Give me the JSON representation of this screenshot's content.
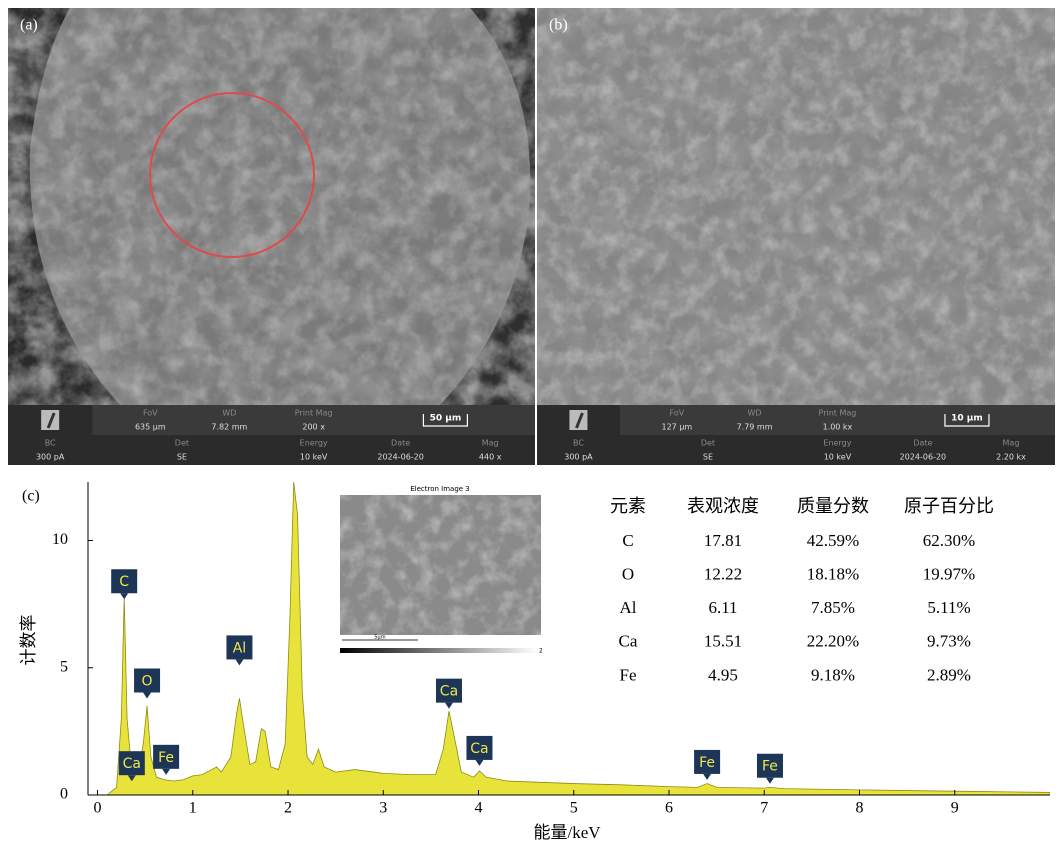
{
  "panels": [
    {
      "label": "(a)",
      "info_top": [
        [
          "FoV",
          "635 μm"
        ],
        [
          "WD",
          "7.82 mm"
        ],
        [
          "Print Mag",
          "200 x"
        ]
      ],
      "scale_bar": "50 μm",
      "info_bottom": [
        [
          "BC",
          "300 pA"
        ],
        [
          "Det",
          "SE"
        ],
        [
          "Energy",
          "10 keV"
        ],
        [
          "Date",
          "2024-06-20"
        ],
        [
          "Mag",
          "440 x"
        ]
      ]
    },
    {
      "label": "(b)",
      "info_top": [
        [
          "FoV",
          "127 μm"
        ],
        [
          "WD",
          "7.79 mm"
        ],
        [
          "Print Mag",
          "1.00 kx"
        ]
      ],
      "scale_bar": "10 μm",
      "info_bottom": [
        [
          "BC",
          "300 pA"
        ],
        [
          "Det",
          "SE"
        ],
        [
          "Energy",
          "10 keV"
        ],
        [
          "Date",
          "2024-06-20"
        ],
        [
          "Mag",
          "2.20 kx"
        ]
      ]
    }
  ],
  "chart_data": {
    "type": "area",
    "panel_label": "(c)",
    "x_label": "能量/keV",
    "y_label": "计数率",
    "color": "#e8e33a",
    "x": [
      0.1,
      0.2,
      0.25,
      0.28,
      0.31,
      0.36,
      0.42,
      0.48,
      0.52,
      0.56,
      0.62,
      0.7,
      0.8,
      0.9,
      1.0,
      1.1,
      1.2,
      1.25,
      1.3,
      1.4,
      1.46,
      1.49,
      1.53,
      1.6,
      1.66,
      1.72,
      1.76,
      1.82,
      1.9,
      1.97,
      2.02,
      2.06,
      2.1,
      2.15,
      2.2,
      2.26,
      2.32,
      2.38,
      2.5,
      2.7,
      3.0,
      3.3,
      3.55,
      3.63,
      3.69,
      3.75,
      3.82,
      3.95,
      4.01,
      4.08,
      4.3,
      5.0,
      5.5,
      6.0,
      6.3,
      6.4,
      6.5,
      7.0,
      7.06,
      7.2,
      8.0,
      9.0,
      10
    ],
    "values": [
      0,
      0.3,
      3,
      7.8,
      3,
      0.9,
      0.8,
      2.0,
      3.5,
      1.5,
      0.7,
      0.6,
      0.55,
      0.6,
      0.75,
      0.8,
      1.0,
      1.1,
      0.9,
      1.5,
      3.2,
      3.8,
      2.8,
      1.2,
      1.3,
      2.6,
      2.5,
      1.1,
      1.0,
      2.0,
      7,
      12.3,
      11,
      4,
      1.5,
      1.2,
      1.8,
      1.1,
      0.9,
      1.0,
      0.85,
      0.8,
      0.8,
      1.8,
      3.3,
      2.2,
      0.9,
      0.7,
      0.95,
      0.7,
      0.55,
      0.45,
      0.4,
      0.33,
      0.3,
      0.45,
      0.3,
      0.27,
      0.3,
      0.25,
      0.2,
      0.15,
      0.1
    ],
    "xlim": [
      -0.1,
      10
    ],
    "ylim": [
      0,
      12.3
    ],
    "xticks": [
      0,
      1,
      2,
      3,
      4,
      5,
      6,
      7,
      8,
      9
    ],
    "yticks": [
      0,
      5,
      10
    ],
    "peak_labels": [
      {
        "text": "C",
        "x": 0.28,
        "y": 8.4
      },
      {
        "text": "O",
        "x": 0.52,
        "y": 4.5
      },
      {
        "text": "Ca",
        "x": 0.36,
        "y": 1.25
      },
      {
        "text": "Fe",
        "x": 0.72,
        "y": 1.5
      },
      {
        "text": "Al",
        "x": 1.49,
        "y": 5.8
      },
      {
        "text": "Ca",
        "x": 3.69,
        "y": 4.1
      },
      {
        "text": "Ca",
        "x": 4.01,
        "y": 1.85
      },
      {
        "text": "Fe",
        "x": 6.4,
        "y": 1.3
      },
      {
        "text": "Fe",
        "x": 7.06,
        "y": 1.15
      }
    ]
  },
  "inset": {
    "title": "Electron Image 3",
    "scale": "5μm",
    "bar_max": "2"
  },
  "table": {
    "header": [
      "元素",
      "表观浓度",
      "质量分数",
      "原子百分比"
    ],
    "rows": [
      [
        "C",
        "17.81",
        "42.59%",
        "62.30%"
      ],
      [
        "O",
        "12.22",
        "18.18%",
        "19.97%"
      ],
      [
        "Al",
        "6.11",
        "7.85%",
        "5.11%"
      ],
      [
        "Ca",
        "15.51",
        "22.20%",
        "9.73%"
      ],
      [
        "Fe",
        "4.95",
        "9.18%",
        "2.89%"
      ]
    ]
  }
}
